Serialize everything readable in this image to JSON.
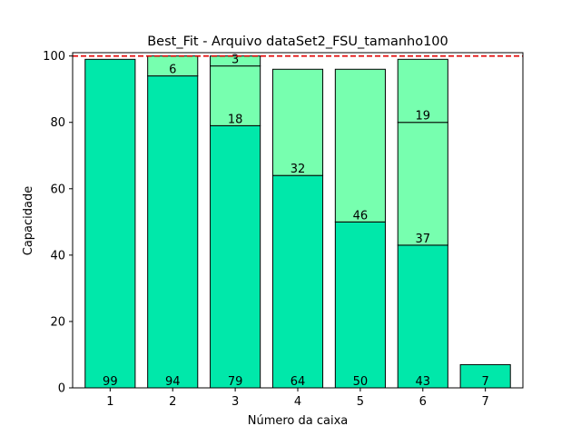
{
  "chart_data": {
    "type": "bar",
    "stacked": true,
    "title": "Best_Fit - Arquivo dataSet2_FSU_tamanho100",
    "xlabel": "Número da caixa",
    "ylabel": "Capacidade",
    "ylim": [
      0,
      101
    ],
    "yticks": [
      0,
      20,
      40,
      60,
      80,
      100
    ],
    "categories": [
      "1",
      "2",
      "3",
      "4",
      "5",
      "6",
      "7"
    ],
    "capacity_line": 100,
    "bars": [
      {
        "box": "1",
        "segments": [
          99
        ]
      },
      {
        "box": "2",
        "segments": [
          94,
          6
        ]
      },
      {
        "box": "3",
        "segments": [
          79,
          18,
          3
        ]
      },
      {
        "box": "4",
        "segments": [
          64,
          32
        ]
      },
      {
        "box": "5",
        "segments": [
          50,
          46
        ]
      },
      {
        "box": "6",
        "segments": [
          43,
          37,
          19
        ]
      },
      {
        "box": "7",
        "segments": [
          7
        ]
      }
    ],
    "colors": {
      "first_segment": "#00e8aa",
      "other_segments": "#77ffaf",
      "edge": "#000000",
      "capacity_line": "#e00000"
    },
    "grid": false,
    "legend": "none"
  }
}
